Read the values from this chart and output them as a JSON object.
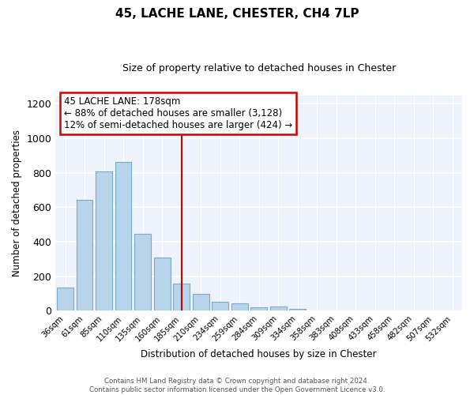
{
  "title": "45, LACHE LANE, CHESTER, CH4 7LP",
  "subtitle": "Size of property relative to detached houses in Chester",
  "xlabel": "Distribution of detached houses by size in Chester",
  "ylabel": "Number of detached properties",
  "bar_color": "#b8d4ea",
  "bar_edge_color": "#7aaac8",
  "categories": [
    "36sqm",
    "61sqm",
    "85sqm",
    "110sqm",
    "135sqm",
    "160sqm",
    "185sqm",
    "210sqm",
    "234sqm",
    "259sqm",
    "284sqm",
    "309sqm",
    "334sqm",
    "358sqm",
    "383sqm",
    "408sqm",
    "433sqm",
    "458sqm",
    "482sqm",
    "507sqm",
    "532sqm"
  ],
  "values": [
    135,
    645,
    808,
    863,
    447,
    310,
    157,
    95,
    52,
    42,
    17,
    22,
    8,
    3,
    0,
    0,
    0,
    3,
    0,
    0,
    2
  ],
  "ylim": [
    0,
    1250
  ],
  "yticks": [
    0,
    200,
    400,
    600,
    800,
    1000,
    1200
  ],
  "property_line_x": 6,
  "annotation_title": "45 LACHE LANE: 178sqm",
  "annotation_line1": "← 88% of detached houses are smaller (3,128)",
  "annotation_line2": "12% of semi-detached houses are larger (424) →",
  "annotation_box_color": "#ffffff",
  "annotation_box_edge_color": "#cc0000",
  "line_color": "#cc0000",
  "footer_line1": "Contains HM Land Registry data © Crown copyright and database right 2024.",
  "footer_line2": "Contains public sector information licensed under the Open Government Licence v3.0.",
  "background_color": "#eef2fb",
  "grid_color": "#d8dce8"
}
